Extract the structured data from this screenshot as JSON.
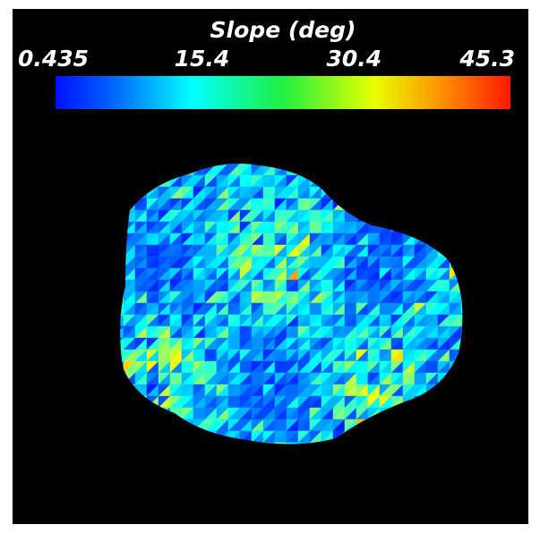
{
  "colorbar": {
    "title": "Slope (deg)",
    "ticks": [
      0.435,
      15.4,
      30.4,
      45.3
    ],
    "range": [
      0.435,
      45.3
    ]
  }
}
